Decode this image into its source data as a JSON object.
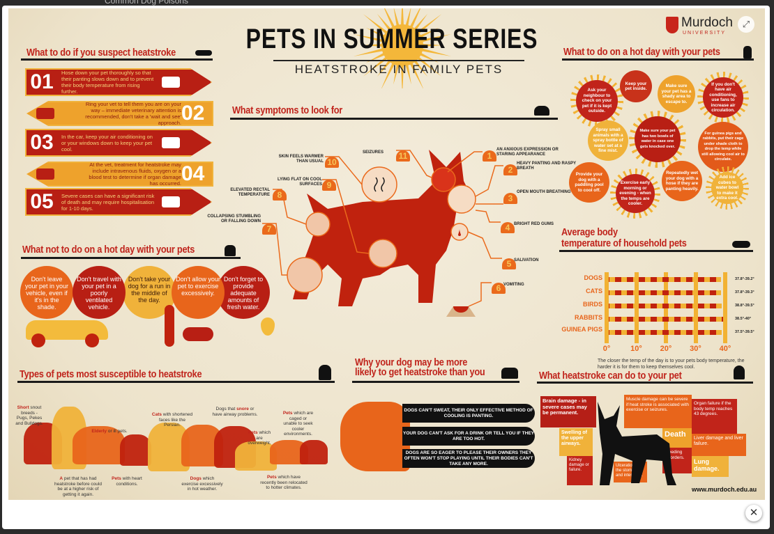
{
  "background": {
    "page_text": "Common Dog Poisons"
  },
  "lightbox": {
    "close_icon": "✕",
    "expand_icon": "⤢"
  },
  "poster": {
    "title": "PETS IN SUMMER SERIES",
    "subtitle": "HEATSTROKE IN FAMILY PETS",
    "logo": {
      "name": "Murdoch",
      "sub": "UNIVERSITY"
    },
    "colors": {
      "red": "#c0241c",
      "orange": "#e8651b",
      "yellow": "#f2b233",
      "paper": "#efe5cf"
    },
    "suspect": {
      "heading": "What to do if you suspect heatstroke",
      "steps": [
        {
          "num": "01",
          "text": "Hose down your pet thoroughly so that their panting slows down and to prevent their body temperature from rising further.",
          "icon": "hose-icon"
        },
        {
          "num": "02",
          "text": "Ring your vet to tell them you are on your way – immediate veterinary attention is recommended, don't take a 'wait and see' approach.",
          "icon": "phone-icon"
        },
        {
          "num": "03",
          "text": "In the car, keep your air conditioning on or your windows down to keep your pet cool.",
          "icon": "car-icon"
        },
        {
          "num": "04",
          "text": "At the vet, treatment for heatstroke may include intravenous fluids, oxygen or a blood test to determine if organ damage has occurred.",
          "icon": "iv-oxygen-syringe-icon"
        },
        {
          "num": "05",
          "text": "Severe cases can have a significant risk of death and may require hospitalisation for 1-10 days.",
          "icon": "first-aid-kit-icon"
        }
      ]
    },
    "symptoms": {
      "heading": "What symptoms to look for",
      "items": [
        {
          "num": "1",
          "text": "AN ANXIOUS EXPRESSION OR STARING APPEARANCE"
        },
        {
          "num": "2",
          "text": "HEAVY PANTING AND RASPY BREATH"
        },
        {
          "num": "3",
          "text": "OPEN MOUTH BREATHING"
        },
        {
          "num": "4",
          "text": "BRIGHT RED GUMS"
        },
        {
          "num": "5",
          "text": "SALIVATION"
        },
        {
          "num": "6",
          "text": "VOMITING"
        },
        {
          "num": "7",
          "text": "COLLAPSING STUMBLING OR FALLING DOWN"
        },
        {
          "num": "8",
          "text": "ELEVATED RECTAL TEMPERATURE"
        },
        {
          "num": "9",
          "text": "LYING FLAT ON COOL SURFACES"
        },
        {
          "num": "10",
          "text": "SKIN FEELS WARMER THAN USUAL"
        },
        {
          "num": "11",
          "text": "SEIZURES"
        }
      ]
    },
    "not_to_do": {
      "heading": "What not to do on a hot day with your pets",
      "items": [
        {
          "text": "Don't leave your pet in your vehicle, even if it's in the shade.",
          "color": "#e8651b"
        },
        {
          "text": "Don't travel with your pet in a poorly ventilated vehicle.",
          "color": "#b81f14"
        },
        {
          "text": "Don't take your dog for a run in the middle of the day.",
          "color": "#f0b23a"
        },
        {
          "text": "Don't allow your pet to exercise excessively.",
          "color": "#e8651b"
        },
        {
          "text": "Don't forget to provide adequate amounts of fresh water.",
          "color": "#b81f14"
        }
      ]
    },
    "hot_day": {
      "heading": "What to do on a hot day with your pets",
      "items": [
        {
          "text": "Ask your neighbour to check on your pet if it is kept outside.",
          "color": "#c1241a"
        },
        {
          "text": "Keep your pet inside.",
          "color": "#c8321a"
        },
        {
          "text": "Make sure your pet has a shady area to escape to.",
          "color": "#eea22c"
        },
        {
          "text": "If you don't have air conditioning, use fans to increase air circulation.",
          "color": "#c1241a"
        },
        {
          "text": "Spray small animals with a spray bottle of water set at a fine mist.",
          "color": "#f0b23a"
        },
        {
          "text": "Make sure your pet has two bowls of water in case one gets knocked over.",
          "color": "#b81f14"
        },
        {
          "text": "For guinea pigs and rabbits, put their cage under shade cloth to drop the temp while still allowing cool air to circulate.",
          "color": "#e25a1a"
        },
        {
          "text": "Provide your dog with a paddling pool to cool off.",
          "color": "#e8651b"
        },
        {
          "text": "Exercise early morning or evening - when the temps are cooler.",
          "color": "#c1241a"
        },
        {
          "text": "Repeatedly wet your dog with a hose if they are panting heavily.",
          "color": "#e8651b"
        },
        {
          "text": "Add ice cubes to water bowl to make it extra cool.",
          "color": "#f0b23a"
        }
      ]
    },
    "temperature": {
      "heading_line1": "Average body",
      "heading_line2": "temperature of household pets",
      "note": "The closer the temp of the day is to your pets body temperature, the harder it is for them to keep themselves cool."
    },
    "susceptible": {
      "heading": "Types of pets most susceptible to heatstroke",
      "labels": [
        {
          "hl": "Short",
          "text": " snout breeds - Pugs, Pekes and Bulldogs."
        },
        {
          "hl": "A",
          "text": " pet that has had heatstroke before could be at a higher risk of getting it again."
        },
        {
          "hl": "Elderly",
          "text": " or ill pets."
        },
        {
          "hl": "Pets",
          "text": " with heart conditions."
        },
        {
          "hl": "Cats",
          "text": " with shortened faces like the Persian."
        },
        {
          "hl": "Dogs",
          "text": " which exercise excessively in hot weather."
        },
        {
          "hl": "snore",
          "pre": "Dogs that ",
          "text": " or have airway problems."
        },
        {
          "hl": "Pets",
          "text": " which are overweight."
        },
        {
          "hl": "Pets",
          "text": " which are caged or unable to seek cooler environments."
        },
        {
          "hl": "Pets",
          "text": " which have recently been relocated to hotter climates."
        }
      ]
    },
    "why_dog": {
      "heading_line1": "Why your dog may be more",
      "heading_line2": "likely to get heatstroke than you",
      "reasons": [
        "DOGS CAN'T SWEAT, THEIR ONLY EFFECTIVE METHOD OF COOLING IS PANTING.",
        "YOUR DOG CAN'T ASK FOR A DRINK OR TELL YOU IF THEY ARE TOO HOT.",
        "DOGS ARE SO EAGER TO PLEASE THEIR OWNERS THEY OFTEN WON'T STOP PLAYING UNTIL THEIR BODIES CAN'T TAKE ANY MORE."
      ]
    },
    "damage": {
      "heading": "What heatstroke can do to your pet",
      "items": [
        {
          "text": "Brain damage - in severe cases may be permanent."
        },
        {
          "text": "Muscle damage can be severe if heat stroke is associated with exercise or seizures."
        },
        {
          "text": "Organ failure if the body temp reaches 43 degrees."
        },
        {
          "text": "Swelling of the upper airways."
        },
        {
          "text": "Death"
        },
        {
          "text": "Liver damage and liver failure."
        },
        {
          "text": "Kidney damage or failure."
        },
        {
          "text": "Ulceration of the stomach and intestines."
        },
        {
          "text": "Bleeding disorders."
        },
        {
          "text": "Lung damage."
        }
      ],
      "url": "www.murdoch.edu.au"
    }
  },
  "chart_data": {
    "type": "bar",
    "orientation": "horizontal",
    "categories": [
      "DOGS",
      "CATS",
      "BIRDS",
      "RABBITS",
      "GUINEA PIGS"
    ],
    "ranges": [
      "37.8°-39.2°",
      "37.8°-39.3°",
      "38.8°-39.5°",
      "38.5°-40°",
      "37.5°-39.5°"
    ],
    "series": [
      {
        "values_low": [
          37.8,
          37.8,
          38.8,
          38.5,
          37.5
        ],
        "values_high": [
          39.2,
          39.3,
          39.5,
          40,
          39.5
        ]
      }
    ],
    "xticks": [
      "0°",
      "10°",
      "20°",
      "30°",
      "40°"
    ],
    "xlim": [
      0,
      40
    ],
    "grid": true
  }
}
